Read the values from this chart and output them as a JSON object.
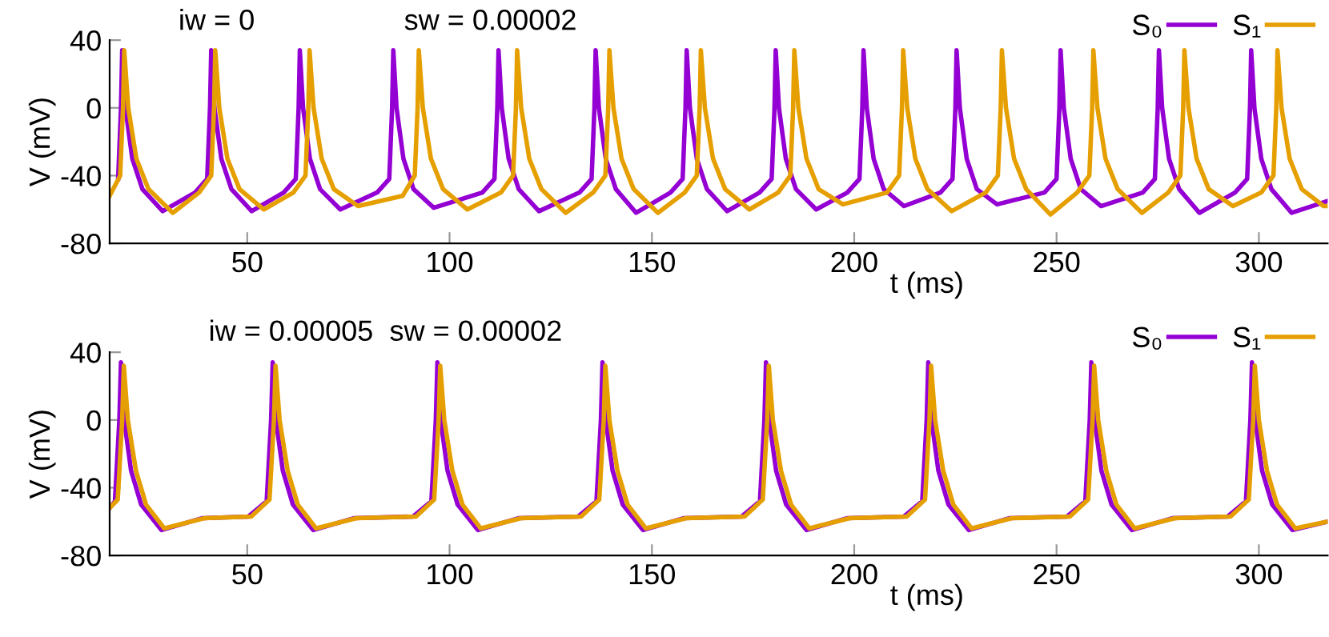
{
  "chart_data": [
    {
      "type": "line",
      "ylabel": "V (mV)",
      "xlabel": "t (ms)",
      "annotations": [
        "iw = 0",
        "sw = 0.00002"
      ],
      "xlim": [
        16,
        317
      ],
      "ylim": [
        -80,
        40
      ],
      "xticks": [
        50,
        100,
        150,
        200,
        250,
        300
      ],
      "yticks": [
        -80,
        -40,
        0,
        40
      ],
      "grid": false,
      "legend": "top right",
      "marker": "none",
      "line_style": "solid",
      "series": [
        {
          "name": "S₀",
          "color": "#9400d3",
          "x": [
            18.1,
            18.8,
            19.1,
            19.9,
            21.6,
            24.1,
            29.1,
            37.1,
            40.1,
            40.8,
            41.1,
            41.9,
            43.6,
            46.1,
            51.1,
            59,
            62,
            62.7,
            63,
            63.8,
            65.5,
            68,
            73,
            82.1,
            85.1,
            85.8,
            86.1,
            86.9,
            88.6,
            91.1,
            96.1,
            108.1,
            111.1,
            111.8,
            112.1,
            112.9,
            114.6,
            117.1,
            122.1,
            132.1,
            135.1,
            135.8,
            136.1,
            136.9,
            138.6,
            141.1,
            146.1,
            154.6,
            157.6,
            158.3,
            158.6,
            159.4,
            161.1,
            163.6,
            168.6,
            176.6,
            179.6,
            180.3,
            180.6,
            181.4,
            183.1,
            185.6,
            190.6,
            198.3,
            201.3,
            202,
            202.3,
            203.1,
            204.8,
            207.3,
            212.3,
            221.3,
            224.3,
            225,
            225.3,
            226.1,
            227.8,
            230.3,
            235.3,
            247,
            250,
            250.7,
            251,
            251.8,
            253.5,
            256,
            261,
            271.3,
            274.3,
            275,
            275.3,
            276.1,
            277.8,
            280.3,
            285.3,
            294.1,
            297.1,
            297.8,
            298.1,
            298.9,
            300.6,
            303.1,
            308.1,
            317
          ],
          "values": [
            -42,
            0,
            34,
            0,
            -30,
            -48,
            -61,
            -50,
            -42,
            0,
            34,
            0,
            -30,
            -48,
            -61,
            -50,
            -42,
            0,
            34,
            0,
            -30,
            -48,
            -60,
            -50,
            -42,
            0,
            34,
            0,
            -30,
            -48,
            -59,
            -50,
            -42,
            0,
            34,
            0,
            -30,
            -48,
            -61,
            -50,
            -42,
            0,
            34,
            0,
            -30,
            -48,
            -62,
            -50,
            -42,
            0,
            34,
            0,
            -30,
            -48,
            -61,
            -50,
            -42,
            0,
            34,
            0,
            -30,
            -48,
            -60,
            -50,
            -42,
            0,
            34,
            0,
            -30,
            -48,
            -58,
            -50,
            -42,
            0,
            34,
            0,
            -30,
            -48,
            -57,
            -50,
            -42,
            0,
            34,
            0,
            -30,
            -48,
            -58,
            -50,
            -42,
            0,
            34,
            0,
            -30,
            -48,
            -62,
            -50,
            -42,
            0,
            34,
            0,
            -30,
            -48,
            -62,
            -55
          ]
        },
        {
          "name": "S₁",
          "color": "#e69f00",
          "x": [
            16,
            18.6,
            19.3,
            19.6,
            20.6,
            22.6,
            25.6,
            31.6,
            38.1,
            41.1,
            41.8,
            42.1,
            43.1,
            45.1,
            48.1,
            54.1,
            61.4,
            64.4,
            65.1,
            65.4,
            66.4,
            68.4,
            71.4,
            77.4,
            88.4,
            91.4,
            92.1,
            92.4,
            93.4,
            95.4,
            98.4,
            104.4,
            112.7,
            115.7,
            116.4,
            116.7,
            117.7,
            119.7,
            122.7,
            128.7,
            135.5,
            138.5,
            139.2,
            139.5,
            140.5,
            142.5,
            145.5,
            151.5,
            158.1,
            161.1,
            161.8,
            162.1,
            163.1,
            165.1,
            168.1,
            174.1,
            181.2,
            184.2,
            184.9,
            185.2,
            186.2,
            188.2,
            191.2,
            197.2,
            208.1,
            211.1,
            211.8,
            212.1,
            213.1,
            215.1,
            218.1,
            224.1,
            232.5,
            235.5,
            236.2,
            236.5,
            237.5,
            239.5,
            242.5,
            248.5,
            255.1,
            258.1,
            258.8,
            259.1,
            260.1,
            262.1,
            265.1,
            271.1,
            277.6,
            280.6,
            281.3,
            281.6,
            282.6,
            284.6,
            287.6,
            293.6,
            300.6,
            303.6,
            304.3,
            304.6,
            305.6,
            307.6,
            310.6,
            316,
            317
          ],
          "values": [
            -52,
            -40,
            0,
            34,
            0,
            -30,
            -48,
            -62,
            -50,
            -40,
            0,
            34,
            0,
            -30,
            -48,
            -60,
            -50,
            -40,
            0,
            34,
            0,
            -30,
            -48,
            -58,
            -52,
            -40,
            0,
            34,
            0,
            -30,
            -48,
            -60,
            -50,
            -40,
            0,
            34,
            0,
            -30,
            -48,
            -62,
            -50,
            -40,
            0,
            34,
            0,
            -30,
            -48,
            -62,
            -50,
            -40,
            0,
            34,
            0,
            -30,
            -48,
            -60,
            -50,
            -40,
            0,
            34,
            0,
            -30,
            -48,
            -57,
            -50,
            -40,
            0,
            34,
            0,
            -30,
            -48,
            -61,
            -50,
            -40,
            0,
            34,
            0,
            -30,
            -48,
            -63,
            -50,
            -40,
            0,
            34,
            0,
            -30,
            -48,
            -62,
            -50,
            -40,
            0,
            34,
            0,
            -30,
            -48,
            -58,
            -50,
            -40,
            0,
            34,
            0,
            -30,
            -48,
            -58,
            -58
          ]
        }
      ]
    },
    {
      "type": "line",
      "ylabel": "V (mV)",
      "xlabel": "t (ms)",
      "annotations": [
        "iw = 0.00005  sw = 0.00002"
      ],
      "xlim": [
        16,
        317
      ],
      "ylim": [
        -80,
        40
      ],
      "xticks": [
        50,
        100,
        150,
        200,
        250,
        300
      ],
      "yticks": [
        -80,
        -40,
        0,
        40
      ],
      "grid": false,
      "legend": "top right",
      "marker": "none",
      "line_style": "solid",
      "series": [
        {
          "name": "S₀",
          "color": "#9400d3",
          "x": [
            16,
            17.3,
            18.4,
            18.8,
            19.6,
            21.3,
            23.8,
            28.8,
            38.8,
            50.3,
            54.8,
            55.9,
            56.3,
            57.1,
            58.8,
            61.3,
            66.3,
            76.3,
            91,
            95.5,
            96.6,
            97,
            97.8,
            99.5,
            102,
            107,
            117,
            131.8,
            136.3,
            137.4,
            137.8,
            138.6,
            140.3,
            142.8,
            147.8,
            157.8,
            172.2,
            176.7,
            177.8,
            178.2,
            179,
            180.7,
            183.2,
            188.2,
            198.2,
            212.3,
            216.8,
            217.9,
            218.3,
            219.1,
            220.8,
            223.3,
            228.3,
            238.3,
            252.6,
            257.1,
            258.2,
            258.6,
            259.4,
            261.1,
            263.6,
            268.6,
            278.6,
            292.3,
            296.8,
            297.9,
            298.3,
            299.1,
            300.8,
            303.3,
            308.3,
            317
          ],
          "values": [
            -52,
            -48,
            0,
            34,
            0,
            -30,
            -50,
            -65,
            -58,
            -57,
            -48,
            0,
            34,
            0,
            -30,
            -50,
            -65,
            -58,
            -57,
            -48,
            0,
            34,
            0,
            -30,
            -50,
            -65,
            -58,
            -57,
            -48,
            0,
            34,
            0,
            -30,
            -50,
            -65,
            -58,
            -57,
            -48,
            0,
            34,
            0,
            -30,
            -50,
            -65,
            -58,
            -57,
            -48,
            0,
            34,
            0,
            -30,
            -50,
            -65,
            -58,
            -57,
            -48,
            0,
            34,
            0,
            -30,
            -50,
            -65,
            -58,
            -57,
            -48,
            0,
            34,
            0,
            -30,
            -50,
            -65,
            -60
          ]
        },
        {
          "name": "S₁",
          "color": "#e69f00",
          "x": [
            16,
            18,
            19.1,
            19.5,
            20.5,
            22.5,
            25,
            29.5,
            39.5,
            51,
            55.5,
            56.6,
            57,
            58,
            60,
            62.5,
            67,
            77,
            91.7,
            96.2,
            97.3,
            97.7,
            98.7,
            100.7,
            103.2,
            107.7,
            117.7,
            132.5,
            137,
            138.1,
            138.5,
            139.5,
            141.5,
            144,
            148.5,
            158.5,
            172.9,
            177.4,
            178.5,
            178.9,
            179.9,
            181.9,
            184.4,
            188.9,
            198.9,
            213,
            217.5,
            218.6,
            219,
            220,
            222,
            224.5,
            229,
            239,
            253.3,
            257.8,
            258.9,
            259.3,
            260.3,
            262.3,
            264.8,
            269.3,
            279.3,
            293,
            297.5,
            298.6,
            299,
            300,
            302,
            304.5,
            309,
            317
          ],
          "values": [
            -52,
            -47,
            0,
            32,
            0,
            -30,
            -50,
            -64,
            -58,
            -57,
            -47,
            0,
            32,
            0,
            -30,
            -50,
            -64,
            -58,
            -57,
            -47,
            0,
            32,
            0,
            -30,
            -50,
            -64,
            -58,
            -57,
            -47,
            0,
            32,
            0,
            -30,
            -50,
            -64,
            -58,
            -57,
            -47,
            0,
            32,
            0,
            -30,
            -50,
            -64,
            -58,
            -57,
            -47,
            0,
            32,
            0,
            -30,
            -50,
            -64,
            -58,
            -57,
            -47,
            0,
            32,
            0,
            -30,
            -50,
            -64,
            -58,
            -57,
            -47,
            0,
            32,
            0,
            -30,
            -50,
            -64,
            -60
          ]
        }
      ]
    }
  ]
}
